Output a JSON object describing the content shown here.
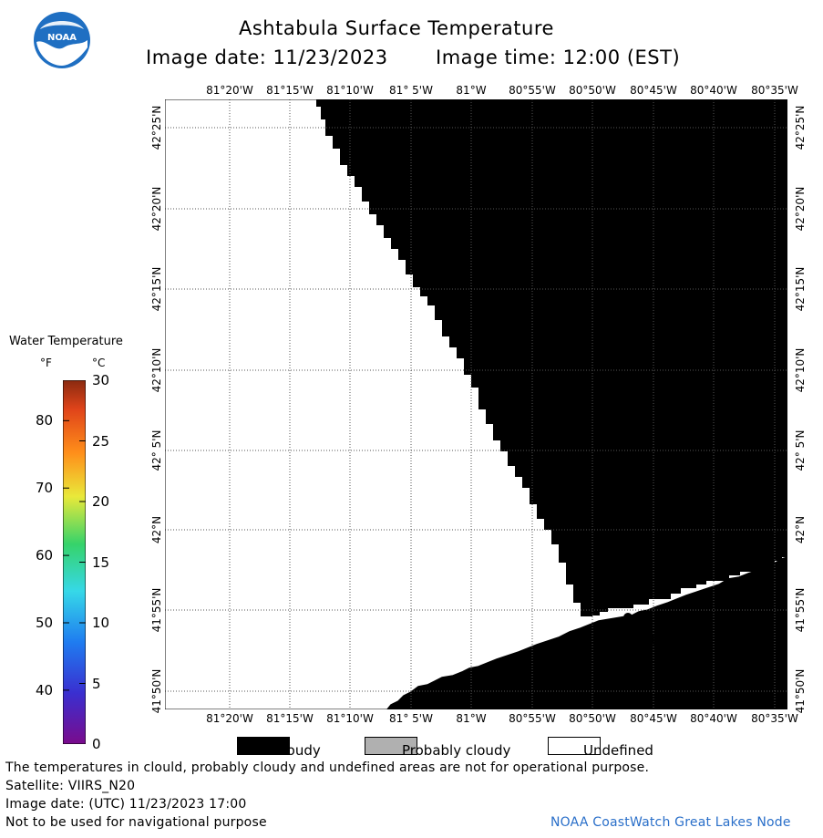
{
  "header": {
    "title": "Ashtabula Surface Temperature",
    "date_label": "Image date: 11/23/2023",
    "time_label": "Image time: 12:00 (EST)"
  },
  "logo": {
    "text": "NOAA",
    "primary_color": "#1f6fc2",
    "secondary_color": "#ffffff"
  },
  "map": {
    "lon_labels": [
      "81°20'W",
      "81°15'W",
      "81°10'W",
      "81° 5'W",
      "81°W",
      "80°55'W",
      "80°50'W",
      "80°45'W",
      "80°40'W",
      "80°35'W"
    ],
    "lat_labels": [
      "42°25'N",
      "42°20'N",
      "42°15'N",
      "42°10'N",
      "42° 5'N",
      "42°N",
      "41°55'N",
      "41°50'N"
    ],
    "place_name": "Ashtabula",
    "colors": {
      "cloudy": "#000000",
      "probably_cloudy": "#777777",
      "undefined": "#ffffff",
      "grid": "#555555"
    }
  },
  "colorbar": {
    "title": "Water Temperature",
    "unit_f": "°F",
    "unit_c": "°C",
    "f_ticks": [
      "80",
      "70",
      "60",
      "50",
      "40"
    ],
    "c_ticks": [
      "30",
      "25",
      "20",
      "15",
      "10",
      "5",
      "0"
    ]
  },
  "legend": {
    "cloudy": "Cloudy",
    "probably_cloudy": "Probably cloudy",
    "undefined": "Undefined"
  },
  "footer": {
    "note": "The temperatures in clould, probably cloudy and undefined areas are not for operational purpose.",
    "satellite": "Satellite: VIIRS_N20",
    "utc_date": "Image date: (UTC) 11/23/2023  17:00",
    "nav_warning": "Not to be used for navigational purpose",
    "credit": "NOAA CoastWatch Great Lakes Node",
    "credit_color": "#2a6fc9"
  }
}
